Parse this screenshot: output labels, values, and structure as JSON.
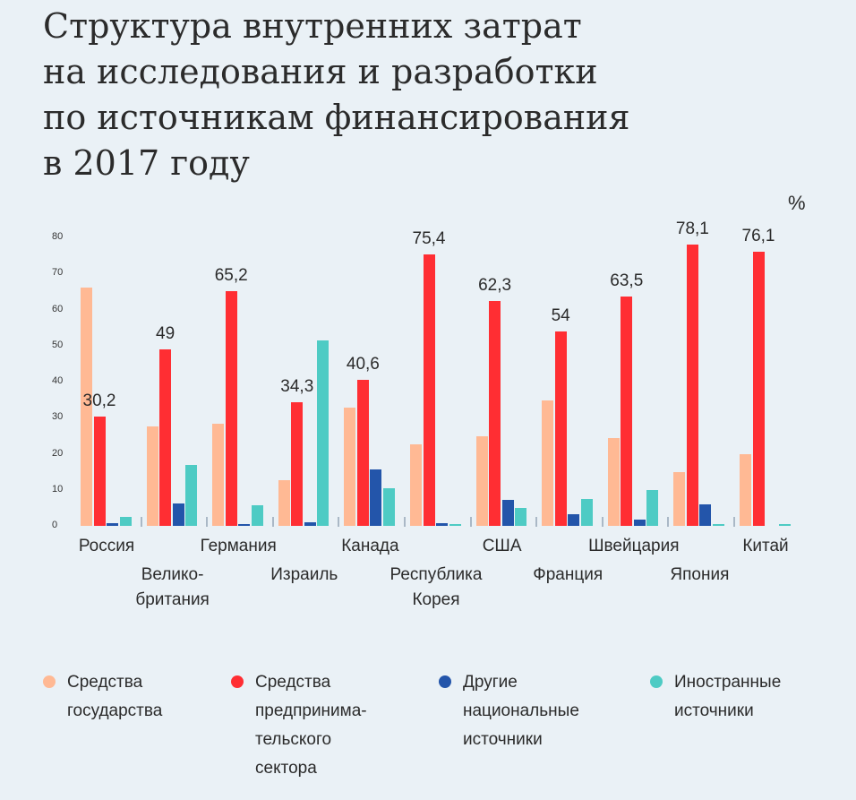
{
  "title_lines": [
    "Структура внутренних затрат",
    "на исследования и разработки",
    "по источникам финансирования",
    "в 2017 году"
  ],
  "chart_data": {
    "type": "bar",
    "title": "Структура внутренних затрат на исследования и разработки по источникам финансирования в 2017 году",
    "unit": "%",
    "ylim": [
      0,
      80
    ],
    "yticks": [
      "0",
      "10",
      "20",
      "30",
      "40",
      "50",
      "60",
      "70",
      "80"
    ],
    "grid": false,
    "legend_position": "bottom",
    "categories": [
      "Россия",
      "Велико-\nбритания",
      "Германия",
      "Израиль",
      "Канада",
      "Республика\nКорея",
      "США",
      "Франция",
      "Швейцария",
      "Япония",
      "Китай"
    ],
    "series": [
      {
        "name": "Средства государства",
        "color": "#ffb994",
        "values": [
          66.0,
          27.6,
          28.3,
          12.6,
          32.8,
          22.5,
          24.9,
          34.7,
          24.3,
          14.8,
          19.8
        ]
      },
      {
        "name": "Средства предпринима-тельского сектора",
        "color": "#ff2e33",
        "values": [
          30.2,
          49,
          65.2,
          34.3,
          40.6,
          75.4,
          62.3,
          54,
          63.5,
          78.1,
          76.1
        ],
        "labels": [
          "30,2",
          "49",
          "65,2",
          "34,3",
          "40,6",
          "75,4",
          "62,3",
          "54",
          "63,5",
          "78,1",
          "76,1"
        ]
      },
      {
        "name": "Другие национальные источники",
        "color": "#2355aa",
        "values": [
          0.7,
          6.1,
          0.4,
          1.1,
          15.7,
          0.7,
          7.2,
          3.3,
          1.7,
          5.9,
          0
        ]
      },
      {
        "name": "Иностранные источники",
        "color": "#4ecbc4",
        "values": [
          2.5,
          17.0,
          5.8,
          51.5,
          10.5,
          0.6,
          5.0,
          7.4,
          10.0,
          0.5,
          0.6
        ]
      }
    ]
  },
  "legend": [
    {
      "label": "Средства\nгосударства"
    },
    {
      "label": "Средства\nпредпринима-\nтельского\nсектора"
    },
    {
      "label": "Другие\nнациональные\nисточники"
    },
    {
      "label": "Иностранные\nисточники"
    }
  ]
}
